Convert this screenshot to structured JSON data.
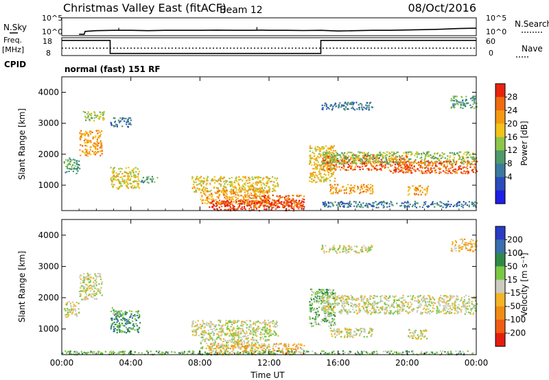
{
  "header": {
    "station": "Christmas Valley East (fitACF)",
    "beam": "Beam 12",
    "date": "08/Oct/2016"
  },
  "left_labels": {
    "nsky": "N.Sky",
    "freq_line1": "Freq.",
    "freq_line2": "[MHz]",
    "cpid": "CPID"
  },
  "right_labels": {
    "nsearch": "N.Search",
    "nave": "Nave"
  },
  "panel_ticks": {
    "noise_left_top": "10^5",
    "noise_left_bottom": "10^0",
    "noise_right_top": "10^5",
    "noise_right_bottom": "10^0",
    "freq_left_top": "18",
    "freq_left_bottom": "8",
    "freq_right_top": "60",
    "freq_right_bottom": "0"
  },
  "cpid_text": "normal (fast) 151 RF",
  "x_axis_label": "Time UT",
  "colors": {
    "frame": "#000000",
    "ground_scatter": "#bfbfbf",
    "power_scale": [
      "#1e1ee6",
      "#2c4cbb",
      "#3b7aa0",
      "#4e9a6a",
      "#8cc64a",
      "#f2c31a",
      "#f59a12",
      "#f06a10",
      "#e8240d"
    ],
    "velocity_scale": [
      "#2a3cc4",
      "#3a6fb0",
      "#2f8a48",
      "#7ac843",
      "#cbcbbf",
      "#f3b524",
      "#f08c16",
      "#ef5c14",
      "#e41d0e"
    ]
  },
  "chart_data": [
    {
      "type": "line",
      "name": "noise",
      "x_unit": "hours UT",
      "xlim": [
        0,
        24
      ],
      "ylim_log10": [
        0,
        5
      ],
      "series": [
        {
          "name": "N.Sky",
          "style": "solid",
          "x": [
            1.0,
            1.3,
            1.35,
            2,
            3,
            4,
            5,
            6,
            7,
            8,
            9,
            10,
            11,
            11.5,
            12,
            13,
            14,
            15,
            16,
            17,
            18,
            19,
            20,
            21,
            22,
            23,
            24
          ],
          "y_log10": [
            0.4,
            0.4,
            1.2,
            1.4,
            1.5,
            1.5,
            1.4,
            1.5,
            1.5,
            1.5,
            1.55,
            1.5,
            1.5,
            1.55,
            1.5,
            1.5,
            1.45,
            1.5,
            1.3,
            1.4,
            1.5,
            1.5,
            1.6,
            1.7,
            1.8,
            2.0,
            2.1
          ]
        }
      ],
      "spikes": [
        {
          "x": 3.3,
          "y_log10": 2.2
        },
        {
          "x": 11.3,
          "y_log10": 2.4
        }
      ]
    },
    {
      "type": "line",
      "name": "frequency",
      "x_unit": "hours UT",
      "xlim": [
        0,
        24
      ],
      "ylim": [
        8,
        18
      ],
      "series": [
        {
          "name": "Freq.",
          "style": "solid",
          "x": [
            0,
            2.8,
            2.8,
            15.0,
            15.0,
            24
          ],
          "y": [
            16.5,
            16.5,
            9.2,
            9.2,
            16.5,
            16.5
          ]
        },
        {
          "name": "Nave",
          "style": "dotted",
          "x": [
            0,
            24
          ],
          "y_right": [
            25,
            25
          ]
        }
      ]
    },
    {
      "type": "heatmap",
      "name": "power",
      "x_unit": "hours UT",
      "xlim": [
        0,
        24
      ],
      "ylim": [
        180,
        4500
      ],
      "ylabel": "Slant Range [km]",
      "xticks": [
        "00:00",
        "04:00",
        "08:00",
        "12:00",
        "16:00",
        "20:00",
        "00:00"
      ],
      "yticks": [
        1000,
        2000,
        3000,
        4000
      ],
      "colorbar": {
        "label": "Power [dB]",
        "ticks": [
          4,
          8,
          12,
          16,
          20,
          24,
          28
        ]
      },
      "regions": [
        {
          "t0": 0.1,
          "t1": 1.0,
          "r0": 1400,
          "r1": 1900,
          "level": 3
        },
        {
          "t0": 1.0,
          "t1": 2.3,
          "r0": 1950,
          "r1": 2800,
          "level": 6
        },
        {
          "t0": 1.2,
          "t1": 2.5,
          "r0": 3100,
          "r1": 3400,
          "level": 4
        },
        {
          "t0": 2.8,
          "t1": 4.5,
          "r0": 900,
          "r1": 1600,
          "level": 5
        },
        {
          "t0": 2.8,
          "t1": 4.0,
          "r0": 2900,
          "r1": 3200,
          "level": 2
        },
        {
          "t0": 4.5,
          "t1": 5.5,
          "r0": 1100,
          "r1": 1300,
          "level": 3
        },
        {
          "t0": 7.5,
          "t1": 12.5,
          "r0": 800,
          "r1": 1300,
          "level": 5
        },
        {
          "t0": 8.0,
          "t1": 12.0,
          "r0": 400,
          "r1": 900,
          "level": 6
        },
        {
          "t0": 8.5,
          "t1": 14.0,
          "r0": 200,
          "r1": 550,
          "level": 8
        },
        {
          "t0": 11.0,
          "t1": 14.0,
          "r0": 300,
          "r1": 700,
          "level": 7
        },
        {
          "t0": 14.3,
          "t1": 15.8,
          "r0": 1100,
          "r1": 2300,
          "level": 5
        },
        {
          "t0": 15.0,
          "t1": 20.0,
          "r0": 1500,
          "r1": 2000,
          "level": 7
        },
        {
          "t0": 15.0,
          "t1": 24.0,
          "r0": 1700,
          "r1": 2100,
          "level": 4
        },
        {
          "t0": 19.0,
          "t1": 24.0,
          "r0": 1400,
          "r1": 1800,
          "level": 7
        },
        {
          "t0": 15.5,
          "t1": 18.0,
          "r0": 750,
          "r1": 1050,
          "level": 6
        },
        {
          "t0": 20.0,
          "t1": 21.2,
          "r0": 700,
          "r1": 1000,
          "level": 6
        },
        {
          "t0": 15.0,
          "t1": 24.0,
          "r0": 300,
          "r1": 500,
          "level": 2
        },
        {
          "t0": 15.0,
          "t1": 18.0,
          "r0": 3450,
          "r1": 3700,
          "level": 2
        },
        {
          "t0": 22.5,
          "t1": 24.0,
          "r0": 3500,
          "r1": 3900,
          "level": 3
        }
      ]
    },
    {
      "type": "heatmap",
      "name": "velocity",
      "x_unit": "hours UT",
      "xlim": [
        0,
        24
      ],
      "ylim": [
        180,
        4500
      ],
      "ylabel": "Slant Range [km]",
      "xlabel": "Time UT",
      "xticks": [
        "00:00",
        "04:00",
        "08:00",
        "12:00",
        "16:00",
        "20:00",
        "00:00"
      ],
      "yticks": [
        1000,
        2000,
        3000,
        4000
      ],
      "colorbar": {
        "label": "Velocity [m s⁻¹]",
        "ticks": [
          200,
          100,
          50,
          15,
          -15,
          -50,
          -100,
          -200
        ]
      },
      "regions": [
        {
          "t0": 0.1,
          "t1": 1.0,
          "r0": 1400,
          "r1": 1900,
          "level": 4
        },
        {
          "t0": 1.0,
          "t1": 2.3,
          "r0": 1950,
          "r1": 2800,
          "level": 4
        },
        {
          "t0": 2.8,
          "t1": 4.5,
          "r0": 900,
          "r1": 1600,
          "level": 2
        },
        {
          "t0": 2.8,
          "t1": 3.4,
          "r0": 1500,
          "r1": 1700,
          "level": 3
        },
        {
          "t0": 7.5,
          "t1": 12.5,
          "r0": 800,
          "r1": 1300,
          "level": 4
        },
        {
          "t0": 8.0,
          "t1": 12.0,
          "r0": 400,
          "r1": 900,
          "level": 4
        },
        {
          "t0": 8.5,
          "t1": 14.0,
          "r0": 200,
          "r1": 550,
          "level": 5
        },
        {
          "t0": 14.3,
          "t1": 15.8,
          "r0": 1100,
          "r1": 2300,
          "level": 3
        },
        {
          "t0": 15.0,
          "t1": 24.0,
          "r0": 1500,
          "r1": 2100,
          "level": 4
        },
        {
          "t0": 15.5,
          "t1": 18.0,
          "r0": 750,
          "r1": 1050,
          "level": 4
        },
        {
          "t0": 20.0,
          "t1": 21.2,
          "r0": 700,
          "r1": 1000,
          "level": 4
        },
        {
          "t0": 0.0,
          "t1": 24.0,
          "r0": 200,
          "r1": 320,
          "level": 3
        },
        {
          "t0": 15.0,
          "t1": 18.0,
          "r0": 3450,
          "r1": 3700,
          "level": 4
        },
        {
          "t0": 22.5,
          "t1": 24.0,
          "r0": 3500,
          "r1": 3900,
          "level": 5
        }
      ]
    }
  ]
}
